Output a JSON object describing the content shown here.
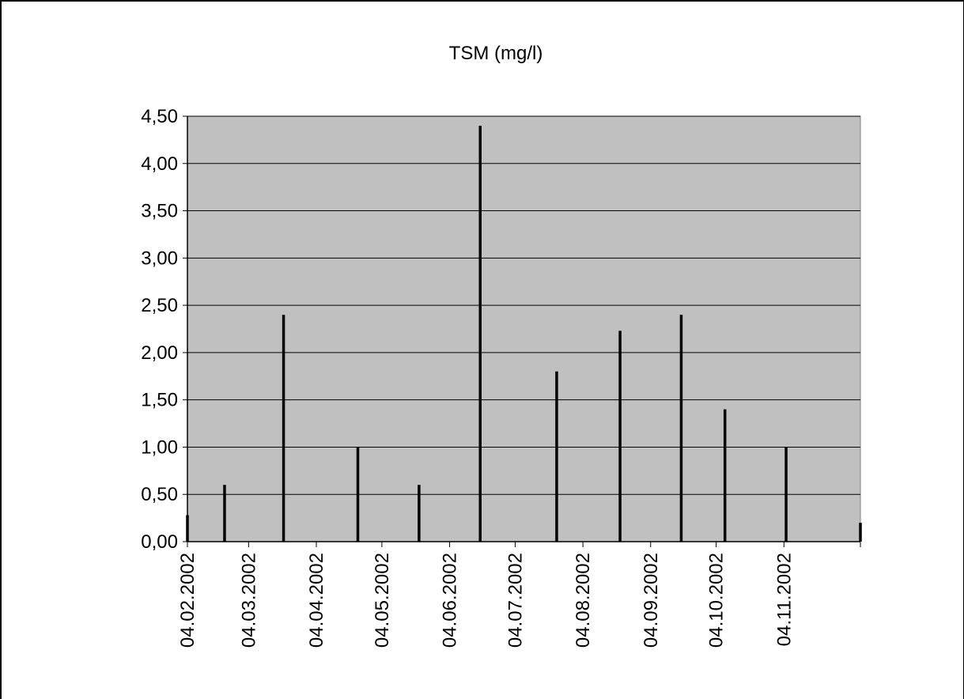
{
  "chart_data": {
    "type": "bar",
    "title": "TSM (mg/l)",
    "xlabel": "",
    "ylabel": "",
    "ylim": [
      0,
      4.5
    ],
    "xlim": [
      "2002-02-04",
      "2002-12-09"
    ],
    "yticks": [
      "0,00",
      "0,50",
      "1,00",
      "1,50",
      "2,00",
      "2,50",
      "3,00",
      "3,50",
      "4,00",
      "4,50"
    ],
    "ytick_values": [
      0,
      0.5,
      1,
      1.5,
      2,
      2.5,
      3,
      3.5,
      4,
      4.5
    ],
    "xticks": [
      {
        "label": "04.02.2002",
        "date": "2002-02-04"
      },
      {
        "label": "04.03.2002",
        "date": "2002-03-04"
      },
      {
        "label": "04.04.2002",
        "date": "2002-04-04"
      },
      {
        "label": "04.05.2002",
        "date": "2002-05-04"
      },
      {
        "label": "04.06.2002",
        "date": "2002-06-04"
      },
      {
        "label": "04.07.2002",
        "date": "2002-07-04"
      },
      {
        "label": "04.08.2002",
        "date": "2002-08-04"
      },
      {
        "label": "04.09.2002",
        "date": "2002-09-04"
      },
      {
        "label": "04.10.2002",
        "date": "2002-10-04"
      },
      {
        "label": "04.11.2002",
        "date": "2002-11-04"
      }
    ],
    "grid": true,
    "plot_background": "#c0c0c0",
    "bar_color": "#000000",
    "points": [
      {
        "date": "2002-02-04",
        "value": 0.28
      },
      {
        "date": "2002-02-21",
        "value": 0.6
      },
      {
        "date": "2002-03-20",
        "value": 2.4
      },
      {
        "date": "2002-04-23",
        "value": 1.0
      },
      {
        "date": "2002-05-21",
        "value": 0.6
      },
      {
        "date": "2002-06-18",
        "value": 4.4
      },
      {
        "date": "2002-07-23",
        "value": 1.8
      },
      {
        "date": "2002-08-21",
        "value": 2.23
      },
      {
        "date": "2002-09-18",
        "value": 2.4
      },
      {
        "date": "2002-10-08",
        "value": 1.4
      },
      {
        "date": "2002-11-05",
        "value": 1.0
      },
      {
        "date": "2002-12-09",
        "value": 0.2
      }
    ]
  }
}
